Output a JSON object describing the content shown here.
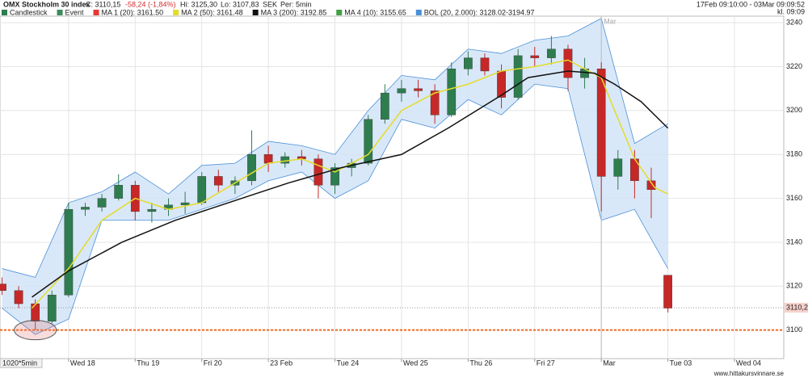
{
  "header": {
    "title": "OMX Stockholm 30 index",
    "close": "C: 3110,15",
    "change": "-58,24 (-1,84%)",
    "high": "Hi: 3125,30",
    "low": "Lo: 3107,83",
    "currency": "SEK",
    "period": "Per: 5min",
    "range": "17Feb 09:10:00 - 03Mar 09:09:52",
    "time": "kl. 09:09",
    "legend": [
      {
        "label": "Candlestick",
        "color": "#2e7d4f"
      },
      {
        "label": "Event",
        "color": "#3c8c5a"
      },
      {
        "label": "MA 1 (20): 3161.50",
        "color": "#e53935"
      },
      {
        "label": "MA 2 (50): 3161.48",
        "color": "#e3dc2a"
      },
      {
        "label": "MA 3 (200): 3192.85",
        "color": "#111111"
      },
      {
        "label": "MA 4 (10): 3155.65",
        "color": "#43a047"
      },
      {
        "label": "BOL (20, 2.000): 3128.02-3194.97",
        "color": "#4a90d9"
      }
    ]
  },
  "chart_data": {
    "type": "candlestick",
    "up_color": "#2e7d4f",
    "down_color": "#c62828",
    "x": [
      0,
      0.25,
      0.5,
      0.75,
      1,
      1.25,
      1.5,
      1.75,
      2,
      2.25,
      2.5,
      2.75,
      3,
      3.25,
      3.5,
      3.75,
      4,
      4.25,
      4.5,
      4.75,
      5,
      5.25,
      5.5,
      5.75,
      6,
      6.25,
      6.5,
      6.75,
      7,
      7.25,
      7.5,
      7.75,
      8,
      8.25,
      8.5,
      8.75,
      9,
      9.25,
      9.5,
      9.75,
      10
    ],
    "open": [
      3121,
      3118,
      3112,
      3104,
      3116,
      3155,
      3156,
      3160,
      3166,
      3154,
      3155,
      3157,
      3158,
      3170,
      3166,
      3168,
      3180,
      3176,
      3179,
      3178,
      3166,
      3174,
      3176,
      3196,
      3208,
      3210,
      3209,
      3198,
      3219,
      3224,
      3218,
      3206,
      3225,
      3224,
      3228,
      3215,
      3219,
      3170,
      3178,
      3168,
      3125
    ],
    "high": [
      3124,
      3120,
      3114,
      3118,
      3158,
      3158,
      3162,
      3171,
      3168,
      3158,
      3160,
      3163,
      3172,
      3173,
      3170,
      3191,
      3184,
      3181,
      3182,
      3180,
      3176,
      3178,
      3198,
      3212,
      3214,
      3214,
      3212,
      3222,
      3227,
      3226,
      3221,
      3228,
      3229,
      3234,
      3230,
      3224,
      3222,
      3182,
      3182,
      3174,
      3125
    ],
    "low": [
      3116,
      3110,
      3100,
      3103,
      3115,
      3152,
      3154,
      3159,
      3150,
      3149,
      3152,
      3153,
      3157,
      3163,
      3162,
      3166,
      3172,
      3174,
      3175,
      3160,
      3162,
      3170,
      3175,
      3194,
      3204,
      3206,
      3194,
      3197,
      3216,
      3216,
      3201,
      3205,
      3220,
      3221,
      3209,
      3210,
      3154,
      3164,
      3160,
      3151,
      3108
    ],
    "close": [
      3118,
      3112,
      3104,
      3116,
      3155,
      3156,
      3160,
      3166,
      3154,
      3155,
      3157,
      3158,
      3170,
      3166,
      3168,
      3180,
      3176,
      3179,
      3178,
      3166,
      3174,
      3176,
      3196,
      3208,
      3210,
      3209,
      3198,
      3219,
      3224,
      3218,
      3206,
      3225,
      3224,
      3228,
      3215,
      3219,
      3170,
      3178,
      3168,
      3164,
      3110
    ],
    "lines": [
      {
        "name": "MA 2",
        "color": "#e3dc2a",
        "x": [
          0.45,
          1,
          1.5,
          2,
          2.5,
          3,
          3.5,
          4,
          4.5,
          5,
          5.5,
          6,
          6.5,
          7,
          7.5,
          8,
          8.5,
          9,
          9.2,
          9.5,
          9.8,
          10
        ],
        "values": [
          3110,
          3128,
          3150,
          3160,
          3155,
          3158,
          3167,
          3176,
          3178,
          3172,
          3180,
          3200,
          3208,
          3212,
          3218,
          3220,
          3223,
          3215,
          3200,
          3178,
          3165,
          3162
        ]
      },
      {
        "name": "MA 3",
        "color": "#111111",
        "x": [
          0.45,
          1,
          1.8,
          2.6,
          3.6,
          4.3,
          5.1,
          6,
          6.7,
          7.5,
          7.9,
          8.5,
          8.9,
          9.2,
          9.6,
          10
        ],
        "values": [
          3115,
          3127,
          3140,
          3150,
          3160,
          3167,
          3174,
          3180,
          3192,
          3207,
          3215,
          3218,
          3217,
          3212,
          3204,
          3192
        ]
      }
    ],
    "band": {
      "name": "BOL",
      "color": "#4a90d9",
      "x": [
        0,
        0.5,
        1,
        1.5,
        2,
        2.5,
        3,
        3.5,
        4,
        4.5,
        5,
        5.5,
        6,
        6.5,
        7,
        7.5,
        8,
        8.5,
        9,
        9.5,
        10
      ],
      "upper": [
        3128,
        3124,
        3158,
        3163,
        3172,
        3162,
        3175,
        3176,
        3186,
        3184,
        3180,
        3200,
        3216,
        3214,
        3228,
        3226,
        3232,
        3234,
        3242,
        3185,
        3194
      ],
      "lower": [
        3110,
        3098,
        3105,
        3150,
        3150,
        3150,
        3155,
        3160,
        3168,
        3172,
        3160,
        3168,
        3196,
        3192,
        3205,
        3198,
        3212,
        3210,
        3150,
        3155,
        3128
      ]
    },
    "last_price": {
      "value": 3110.2,
      "label": "3110,2"
    },
    "alert_line": 3100,
    "marker_label": "Mar",
    "xlim": [
      -0.03,
      11.74
    ],
    "ylim": [
      3087,
      3243
    ],
    "yticks": [
      3100,
      3120,
      3140,
      3160,
      3180,
      3200,
      3220,
      3240
    ],
    "xticks": [
      {
        "value": 1,
        "label": "Wed 18"
      },
      {
        "value": 2,
        "label": "Thu 19"
      },
      {
        "value": 3,
        "label": "Fri 20"
      },
      {
        "value": 4,
        "label": "23 Feb"
      },
      {
        "value": 5,
        "label": "Tue 24"
      },
      {
        "value": 6,
        "label": "Wed 25"
      },
      {
        "value": 7,
        "label": "Thu 26"
      },
      {
        "value": 8,
        "label": "Fri 27"
      },
      {
        "value": 9,
        "label": "Mar"
      },
      {
        "value": 10,
        "label": "Tue 03"
      },
      {
        "value": 11,
        "label": "Wed 04"
      }
    ],
    "period_label": "1020*5min",
    "grid": true
  },
  "footer": {
    "watermark": "www.hittakursvinnare.se"
  }
}
